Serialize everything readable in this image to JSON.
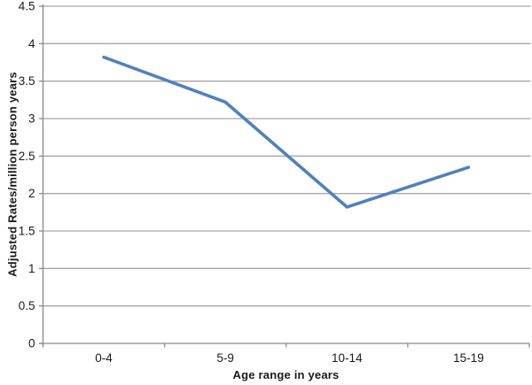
{
  "chart_data": {
    "type": "line",
    "title": "",
    "xlabel": "Age range in years",
    "ylabel": "Adjusted Rates/million person years",
    "categories": [
      "0-4",
      "5-9",
      "10-14",
      "15-19"
    ],
    "values": [
      3.82,
      3.22,
      1.82,
      2.35
    ],
    "ylim": [
      0,
      4.5
    ],
    "y_ticks": [
      0,
      0.5,
      1,
      1.5,
      2,
      2.5,
      3,
      3.5,
      4,
      4.5
    ],
    "y_tick_labels": [
      "0",
      "0.5",
      "1",
      "1.5",
      "2",
      "2.5",
      "3",
      "3.5",
      "4",
      "4.5"
    ],
    "grid": true,
    "legend": false,
    "colors": {
      "line": "#4F81BD",
      "grid": "#A6A6A6",
      "axis": "#898989",
      "text": "#1A1A1A",
      "background": "#FFFFFF"
    }
  }
}
